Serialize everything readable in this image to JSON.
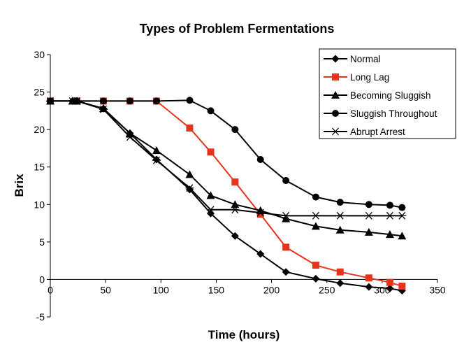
{
  "chart_data": {
    "type": "line",
    "title": "Types of Problem Fermentations",
    "xlabel": "Time (hours)",
    "ylabel": "Brix",
    "xlim": [
      0,
      350
    ],
    "ylim": [
      -5,
      30
    ],
    "xticks": [
      "0",
      "50",
      "100",
      "150",
      "200",
      "250",
      "300",
      "350"
    ],
    "yticks": [
      "-5",
      "0",
      "5",
      "10",
      "15",
      "20",
      "25",
      "30"
    ],
    "grid": false,
    "legend_position": "top-right",
    "series": [
      {
        "name": "Normal",
        "color": "#000000",
        "marker": "diamond",
        "x": [
          0,
          20,
          24,
          48,
          72,
          96,
          126,
          145,
          167,
          190,
          213,
          240,
          262,
          288,
          307,
          318
        ],
        "y": [
          23.8,
          23.8,
          23.8,
          22.8,
          19.5,
          16.0,
          12.0,
          8.8,
          5.8,
          3.4,
          1.0,
          0.1,
          -0.5,
          -1.0,
          -1.2,
          -1.5
        ]
      },
      {
        "name": "Long Lag",
        "color": "#e8331c",
        "marker": "square",
        "x": [
          0,
          24,
          48,
          72,
          96,
          126,
          145,
          167,
          190,
          213,
          240,
          262,
          288,
          307,
          318
        ],
        "y": [
          23.8,
          23.8,
          23.8,
          23.8,
          23.8,
          20.2,
          17.0,
          13.0,
          8.7,
          4.3,
          1.9,
          1.0,
          0.2,
          -0.4,
          -0.9
        ]
      },
      {
        "name": "Becoming Sluggish",
        "color": "#000000",
        "marker": "triangle",
        "x": [
          0,
          20,
          24,
          48,
          72,
          96,
          126,
          145,
          167,
          190,
          213,
          240,
          262,
          288,
          307,
          318
        ],
        "y": [
          23.8,
          23.8,
          23.8,
          22.8,
          19.5,
          17.2,
          14.0,
          11.2,
          10.0,
          9.2,
          8.1,
          7.1,
          6.6,
          6.3,
          6.0,
          5.8
        ]
      },
      {
        "name": "Sluggish Throughout",
        "color": "#000000",
        "marker": "circle",
        "x": [
          0,
          24,
          48,
          72,
          96,
          126,
          145,
          167,
          190,
          213,
          240,
          262,
          288,
          307,
          318
        ],
        "y": [
          23.8,
          23.8,
          23.8,
          23.8,
          23.8,
          23.9,
          22.5,
          20.0,
          16.0,
          13.2,
          11.0,
          10.3,
          10.0,
          9.9,
          9.6
        ]
      },
      {
        "name": "Abrupt Arrest",
        "color": "#000000",
        "marker": "asterisk",
        "x": [
          0,
          20,
          24,
          48,
          72,
          96,
          126,
          145,
          167,
          190,
          213,
          240,
          262,
          288,
          307,
          318
        ],
        "y": [
          23.8,
          23.8,
          23.8,
          22.7,
          19.0,
          15.9,
          12.2,
          9.3,
          9.3,
          8.9,
          8.5,
          8.5,
          8.5,
          8.5,
          8.5,
          8.5
        ]
      }
    ]
  }
}
